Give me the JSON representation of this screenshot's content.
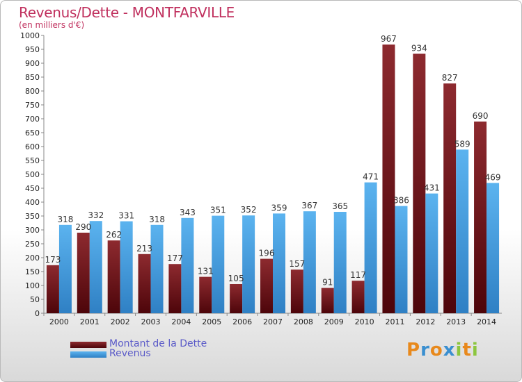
{
  "title": "Revenus/Dette - MONTFARVILLE",
  "subtitle": "(en milliers d'€)",
  "logo": {
    "letters": [
      "P",
      "r",
      "o",
      "x",
      "i",
      "t",
      "i"
    ],
    "colors": [
      "#e8891c",
      "#3a8fd0",
      "#e8891c",
      "#3a8fd0",
      "#8cc63f",
      "#e8891c",
      "#8cc63f"
    ]
  },
  "legend": [
    {
      "label": "Montant de la Dette",
      "color": "#6b0f14"
    },
    {
      "label": "Revenus",
      "color": "#3a8fd0"
    }
  ],
  "chart_data": {
    "type": "bar",
    "title": "Revenus/Dette - MONTFARVILLE",
    "subtitle": "(en milliers d'€)",
    "categories": [
      "2000",
      "2001",
      "2002",
      "2003",
      "2004",
      "2005",
      "2006",
      "2007",
      "2008",
      "2009",
      "2010",
      "2011",
      "2012",
      "2013",
      "2014"
    ],
    "series": [
      {
        "name": "Montant de la Dette",
        "color": "#7a1a1f",
        "values": [
          173,
          290,
          262,
          213,
          177,
          131,
          105,
          196,
          157,
          91,
          117,
          967,
          934,
          827,
          690
        ]
      },
      {
        "name": "Revenus",
        "color": "#4ea6e6",
        "values": [
          318,
          332,
          331,
          318,
          343,
          351,
          352,
          359,
          367,
          365,
          471,
          386,
          431,
          589,
          469
        ]
      }
    ],
    "ylim": [
      0,
      1000
    ],
    "ytick_step": 50,
    "grid": false,
    "legend_position": "bottom-left"
  }
}
